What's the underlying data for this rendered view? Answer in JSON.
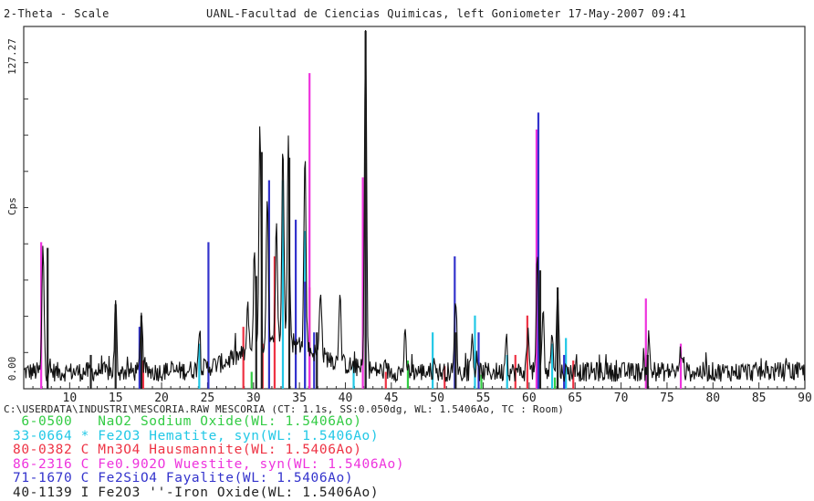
{
  "header": {
    "left": "2-Theta - Scale",
    "right": "UANL-Facultad de Ciencias Quimicas, left Goniometer 17-May-2007 09:41"
  },
  "footer_path": "C:\\USERDATA\\INDUSTRI\\MESCORIA.RAW MESCORIA (CT: 1.1s, SS:0.050dg, WL: 1.5406Ao, TC : Room)",
  "legend": [
    {
      "code": "6-0500",
      "flag": " ",
      "text": "NaO2 Sodium Oxide(WL: 1.5406Ao)",
      "color": "#33cc44"
    },
    {
      "code": "33-0664",
      "flag": "*",
      "text": "Fe2O3 Hematite, syn(WL: 1.5406Ao)",
      "color": "#22c8e6"
    },
    {
      "code": "80-0382",
      "flag": "C",
      "text": "Mn3O4 Hausmannite(WL: 1.5406Ao)",
      "color": "#ee3344"
    },
    {
      "code": "86-2316",
      "flag": "C",
      "text": "Fe0.902O Wuestite, syn(WL: 1.5406Ao)",
      "color": "#ee33dd"
    },
    {
      "code": "71-1670",
      "flag": "C",
      "text": "Fe2SiO4 Fayalite(WL: 1.5406Ao)",
      "color": "#3333cc"
    },
    {
      "code": "40-1139",
      "flag": "I",
      "text": "Fe2O3 ''-Iron Oxide(WL: 1.5406Ao)",
      "color": "#222222"
    }
  ],
  "chart_data": {
    "type": "line",
    "ylabel": "Cps",
    "ytick_top": "127.27",
    "ytick_bottom": "0.00",
    "xlim": [
      5,
      90
    ],
    "ylim": [
      0,
      127.27
    ],
    "xticks": [
      10,
      15,
      20,
      25,
      30,
      35,
      40,
      45,
      50,
      55,
      60,
      65,
      70,
      75,
      80,
      85,
      90
    ],
    "baseline": 6,
    "measured_peaks": [
      {
        "x": 7.1,
        "y": 50
      },
      {
        "x": 15,
        "y": 30
      },
      {
        "x": 17.8,
        "y": 28
      },
      {
        "x": 24.1,
        "y": 18
      },
      {
        "x": 29.4,
        "y": 22
      },
      {
        "x": 30.1,
        "y": 40
      },
      {
        "x": 30.7,
        "y": 84
      },
      {
        "x": 31.5,
        "y": 60
      },
      {
        "x": 32.5,
        "y": 47
      },
      {
        "x": 33.2,
        "y": 77
      },
      {
        "x": 33.8,
        "y": 83
      },
      {
        "x": 35.6,
        "y": 74
      },
      {
        "x": 37.3,
        "y": 31
      },
      {
        "x": 39.4,
        "y": 32
      },
      {
        "x": 42.2,
        "y": 127
      },
      {
        "x": 46.5,
        "y": 18
      },
      {
        "x": 52.0,
        "y": 34
      },
      {
        "x": 53.8,
        "y": 18
      },
      {
        "x": 57.5,
        "y": 20
      },
      {
        "x": 59.9,
        "y": 22
      },
      {
        "x": 60.9,
        "y": 46
      },
      {
        "x": 61.5,
        "y": 28
      },
      {
        "x": 62.5,
        "y": 22
      },
      {
        "x": 63.1,
        "y": 36
      },
      {
        "x": 73,
        "y": 18
      },
      {
        "x": 76.5,
        "y": 14
      }
    ],
    "series": [
      {
        "name": "6-0500",
        "color": "#33cc44",
        "sticks": [
          [
            29.8,
            6
          ],
          [
            46.8,
            10
          ],
          [
            54.8,
            5
          ],
          [
            62.8,
            4
          ]
        ]
      },
      {
        "name": "33-0664",
        "color": "#22c8e6",
        "sticks": [
          [
            24.1,
            16
          ],
          [
            33.2,
            74
          ],
          [
            35.6,
            56
          ],
          [
            40.9,
            8
          ],
          [
            49.5,
            20
          ],
          [
            54.1,
            26
          ],
          [
            57.6,
            12
          ],
          [
            62.5,
            16
          ],
          [
            64.0,
            18
          ]
        ]
      },
      {
        "name": "80-0382",
        "color": "#ee3344",
        "sticks": [
          [
            18.0,
            10
          ],
          [
            28.9,
            22
          ],
          [
            31.0,
            16
          ],
          [
            32.3,
            47
          ],
          [
            36.1,
            36
          ],
          [
            44.4,
            6
          ],
          [
            50.8,
            8
          ],
          [
            58.5,
            12
          ],
          [
            59.8,
            26
          ],
          [
            64.8,
            10
          ]
        ]
      },
      {
        "name": "86-2316",
        "color": "#ee33dd",
        "sticks": [
          [
            6.9,
            52
          ],
          [
            36.1,
            112
          ],
          [
            41.9,
            75
          ],
          [
            60.8,
            92
          ],
          [
            72.7,
            32
          ],
          [
            76.5,
            16
          ]
        ]
      },
      {
        "name": "71-1670",
        "color": "#3333cc",
        "sticks": [
          [
            17.6,
            22
          ],
          [
            25.1,
            52
          ],
          [
            31.7,
            74
          ],
          [
            34.6,
            60
          ],
          [
            35.6,
            38
          ],
          [
            36.6,
            20
          ],
          [
            42.2,
            60
          ],
          [
            51.9,
            47
          ],
          [
            54.5,
            20
          ],
          [
            61.0,
            98
          ],
          [
            63.8,
            12
          ]
        ]
      },
      {
        "name": "40-1139",
        "color": "#222222",
        "sticks": [
          [
            7.6,
            50
          ],
          [
            12.3,
            12
          ],
          [
            15.0,
            30
          ],
          [
            17.8,
            26
          ],
          [
            30.3,
            40
          ],
          [
            30.9,
            84
          ],
          [
            33.9,
            82
          ],
          [
            36.9,
            20
          ],
          [
            42.2,
            127
          ],
          [
            52.0,
            20
          ],
          [
            61.2,
            42
          ],
          [
            63.1,
            36
          ],
          [
            72.9,
            12
          ]
        ]
      }
    ]
  }
}
